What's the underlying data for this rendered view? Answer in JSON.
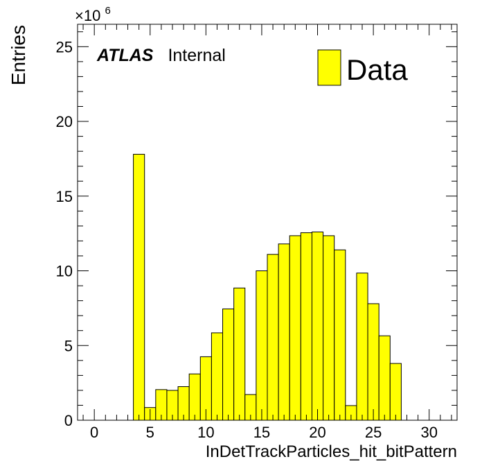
{
  "chart_data": {
    "type": "bar",
    "style": "histogram",
    "x": [
      0,
      1,
      2,
      3,
      4,
      5,
      6,
      7,
      8,
      9,
      10,
      11,
      12,
      13,
      14,
      15,
      16,
      17,
      18,
      19,
      20,
      21,
      22,
      23,
      24,
      25,
      26,
      27,
      28,
      29,
      30,
      31
    ],
    "values": [
      0,
      0,
      0,
      0,
      17.8,
      0.85,
      2.05,
      2.0,
      2.25,
      3.1,
      4.25,
      5.85,
      7.45,
      8.85,
      1.72,
      10.0,
      11.1,
      11.8,
      12.35,
      12.55,
      12.6,
      12.35,
      11.4,
      0.98,
      9.85,
      7.8,
      5.65,
      3.8,
      0,
      0,
      0,
      0
    ],
    "xlim": [
      -1.5,
      32.5
    ],
    "ylim": [
      0,
      26.5
    ],
    "xticks": [
      0,
      5,
      10,
      15,
      20,
      25,
      30
    ],
    "yticks": [
      0,
      5,
      10,
      15,
      20,
      25
    ],
    "xtick_labels": [
      "0",
      "5",
      "10",
      "15",
      "20",
      "25",
      "30"
    ],
    "ytick_labels": [
      "0",
      "5",
      "10",
      "15",
      "20",
      "25"
    ],
    "xlabel": "InDetTrackParticles_hit_bitPattern",
    "ylabel": "Entries",
    "multiplier_base": "×10",
    "multiplier_exponent": "6",
    "fill_color": "#ffff00",
    "edge_color": "#000000",
    "legend": {
      "label": "Data",
      "position": "top-right"
    },
    "label_bold": "ATLAS",
    "label_normal": "Internal"
  }
}
